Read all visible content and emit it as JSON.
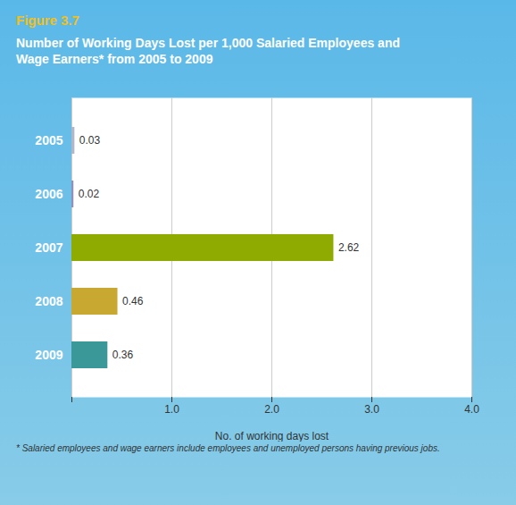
{
  "chart_data": {
    "type": "bar",
    "orientation": "horizontal",
    "title": "Figure 3.7",
    "subtitle": [
      "Number of Working Days Lost per 1,000 Salaried Employees and",
      "Wage Earners* from 2005 to 2009"
    ],
    "annotations": [
      "* Salaried employees and wage earners include employees and unemployed persons having previous jobs."
    ],
    "categories": [
      "2005",
      "2006",
      "2007",
      "2008",
      "2009"
    ],
    "values": [
      0.03,
      0.02,
      2.62,
      0.46,
      0.36
    ],
    "colors": [
      "#b0b8c8",
      "#9090b8",
      "#8faa00",
      "#c8a830",
      "#3a9898"
    ],
    "xlabel": "No. of working days lost",
    "xlim": [
      0,
      4.0
    ],
    "xticks": [
      {
        "value": 0,
        "label": null
      },
      {
        "value": 1.0,
        "label": "1.0"
      },
      {
        "value": 2.0,
        "label": "2.0"
      },
      {
        "value": 3.0,
        "label": "3.0"
      },
      {
        "value": 4.0,
        "label": "4.0"
      }
    ],
    "grid": true,
    "data_labels": true
  }
}
